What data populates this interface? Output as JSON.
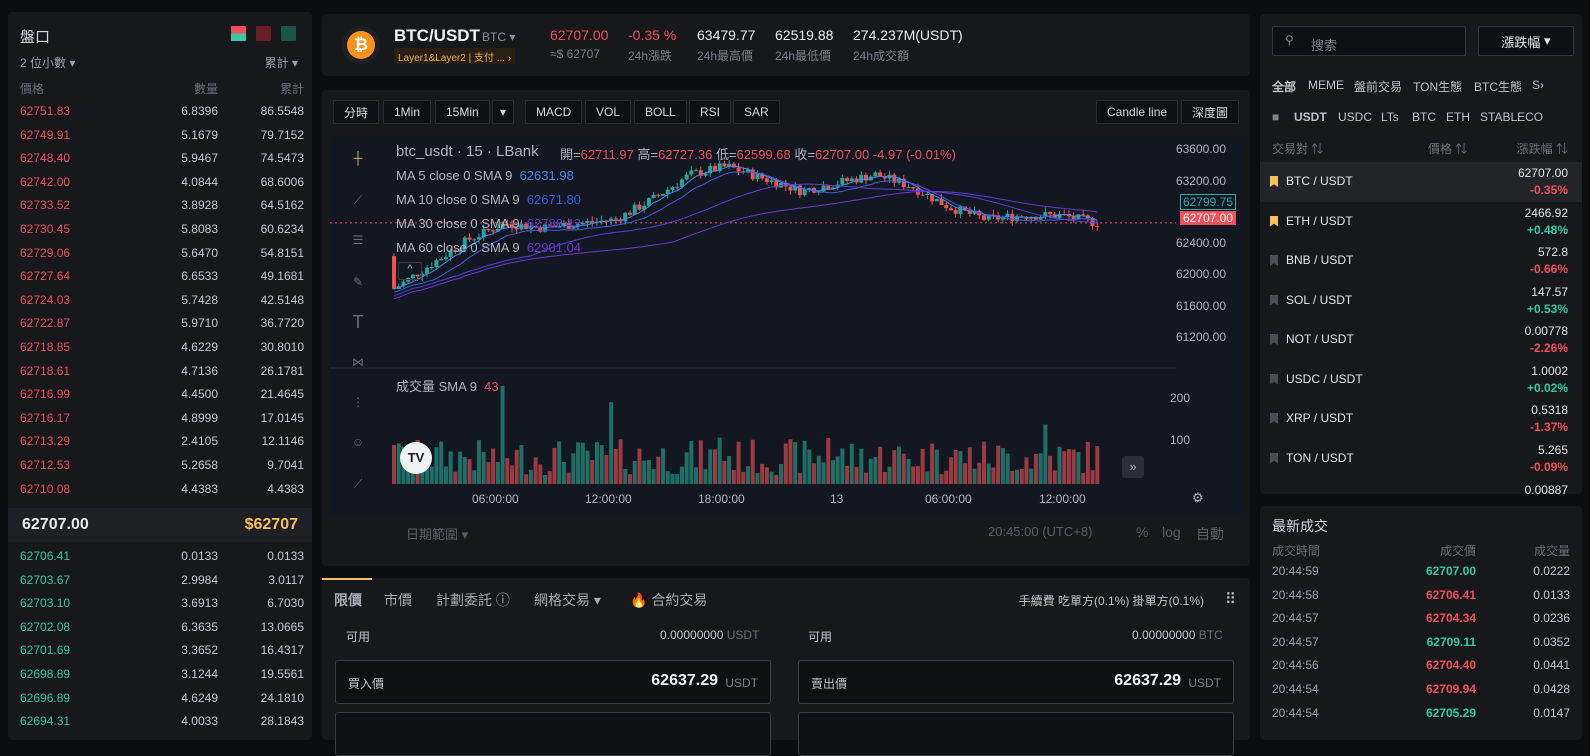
{
  "orderbook": {
    "title": "盤口",
    "decimals": "2 位小數",
    "cumulative": "累計",
    "headers": {
      "price": "價格",
      "amount": "數量",
      "total": "累計"
    },
    "asks": [
      [
        "62751.83",
        "6.8396",
        "86.5548"
      ],
      [
        "62749.91",
        "5.1679",
        "79.7152"
      ],
      [
        "62748.40",
        "5.9467",
        "74.5473"
      ],
      [
        "62742.00",
        "4.0844",
        "68.6006"
      ],
      [
        "62733.52",
        "3.8928",
        "64.5162"
      ],
      [
        "62730.45",
        "5.8083",
        "60.6234"
      ],
      [
        "62729.06",
        "5.6470",
        "54.8151"
      ],
      [
        "62727.64",
        "6.6533",
        "49.1681"
      ],
      [
        "62724.03",
        "5.7428",
        "42.5148"
      ],
      [
        "62722.87",
        "5.9710",
        "36.7720"
      ],
      [
        "62718.85",
        "4.6229",
        "30.8010"
      ],
      [
        "62718.61",
        "4.7136",
        "26.1781"
      ],
      [
        "62716.99",
        "4.4500",
        "21.4645"
      ],
      [
        "62716.17",
        "4.8999",
        "17.0145"
      ],
      [
        "62713.29",
        "2.4105",
        "12.1146"
      ],
      [
        "62712.53",
        "5.2658",
        "9.7041"
      ],
      [
        "62710.08",
        "4.4383",
        "4.4383"
      ]
    ],
    "last_price": "62707.00",
    "last_usd": "$62707",
    "bids": [
      [
        "62706.41",
        "0.0133",
        "0.0133"
      ],
      [
        "62703.67",
        "2.9984",
        "3.0117"
      ],
      [
        "62703.10",
        "3.6913",
        "6.7030"
      ],
      [
        "62702.08",
        "6.3635",
        "13.0665"
      ],
      [
        "62701.69",
        "3.3652",
        "16.4317"
      ],
      [
        "62698.89",
        "3.1244",
        "19.5561"
      ],
      [
        "62696.89",
        "4.6249",
        "24.1810"
      ],
      [
        "62694.31",
        "4.0033",
        "28.1843"
      ]
    ]
  },
  "header": {
    "pair": "BTC/USDT",
    "base": "BTC",
    "tags": "Layer1&Layer2 | 支付 ... ›",
    "price": "62707.00",
    "price_usd": "≈$ 62707",
    "change": "-0.35 %",
    "change_label": "24h漲跌",
    "high": "63479.77",
    "high_label": "24h最高價",
    "low": "62519.88",
    "low_label": "24h最低價",
    "volume": "274.237M(USDT)",
    "volume_label": "24h成交額"
  },
  "chart_toolbar": {
    "timeframes": [
      "分時",
      "1Min",
      "15Min"
    ],
    "indicators": [
      "MACD",
      "VOL",
      "BOLL",
      "RSI",
      "SAR"
    ],
    "candle_line": "Candle line",
    "depth": "深度圖"
  },
  "chart_info": {
    "symbol": "btc_usdt · 15 · LBank",
    "ohlc_open_label": "開=",
    "ohlc_open": "62711.97",
    "ohlc_high_label": "高=",
    "ohlc_high": "62727.36",
    "ohlc_low_label": "低=",
    "ohlc_low": "62599.68",
    "ohlc_close_label": "收=",
    "ohlc_close": "62707.00",
    "ohlc_change": "-4.97 (-0.01%)",
    "ma": [
      {
        "label": "MA 5 close 0 SMA 9",
        "value": "62631.98",
        "color": "#4f86e8"
      },
      {
        "label": "MA 10 close 0 SMA 9",
        "value": "62671.80",
        "color": "#3f5fe0"
      },
      {
        "label": "MA 30 close 0 SMA 9",
        "value": "62788.43",
        "color": "#5a3fd6"
      },
      {
        "label": "MA 60 close 0 SMA 9",
        "value": "62901.04",
        "color": "#6a3ad0"
      }
    ],
    "vol_label": "成交量",
    "vol_sma": "SMA 9",
    "vol_value": "43",
    "y_ticks": [
      "63600.00",
      "63200.00",
      "62799.75",
      "62707.00",
      "62400.00",
      "62000.00",
      "61600.00",
      "61200.00"
    ],
    "vol_ticks": [
      "200",
      "100"
    ],
    "x_ticks": [
      "06:00:00",
      "12:00:00",
      "18:00:00",
      "13",
      "06:00:00",
      "12:00:00"
    ],
    "date_range": "日期範圍",
    "time": "20:45:00 (UTC+8)",
    "pct": "%",
    "log": "log",
    "auto": "自動"
  },
  "chart_data": {
    "type": "candlestick",
    "x": [
      "06:00:00",
      "12:00:00",
      "18:00:00",
      "13",
      "06:00:00",
      "12:00:00"
    ],
    "y_range": [
      61200,
      63600
    ],
    "last_close": 62707.0,
    "ma_values": [
      62631.98,
      62671.8,
      62788.43,
      62901.04
    ],
    "volume_range": [
      0,
      200
    ]
  },
  "order": {
    "tabs": [
      "限價",
      "市價",
      "計劃委託",
      "網格交易",
      "合約交易"
    ],
    "fee_label": "手續費",
    "fee": "吃單方(0.1%) 掛單方(0.1%)",
    "avail_label": "可用",
    "buy_avail": "0.00000000",
    "buy_unit": "USDT",
    "sell_avail": "0.00000000",
    "sell_unit": "BTC",
    "buy_price_label": "買入價",
    "sell_price_label": "賣出價",
    "price_value": "62637.29",
    "price_unit": "USDT"
  },
  "markets": {
    "search_placeholder": "搜索",
    "sort": "漲跌幅",
    "categories": [
      "全部",
      "MEME",
      "盤前交易",
      "TON生態",
      "BTC生態",
      "S"
    ],
    "quotes": [
      "USDT",
      "USDC",
      "LTs",
      "BTC",
      "ETH",
      "STABLECO"
    ],
    "headers": {
      "pair": "交易對",
      "price": "價格",
      "change": "漲跌幅"
    },
    "rows": [
      {
        "pair": "BTC / USDT",
        "price": "62707.00",
        "change": "-0.35%",
        "up": false,
        "star": true
      },
      {
        "pair": "ETH / USDT",
        "price": "2466.92",
        "change": "+0.48%",
        "up": true,
        "star": true
      },
      {
        "pair": "BNB / USDT",
        "price": "572.8",
        "change": "-0.66%",
        "up": false,
        "star": false
      },
      {
        "pair": "SOL / USDT",
        "price": "147.57",
        "change": "+0.53%",
        "up": true,
        "star": false
      },
      {
        "pair": "NOT / USDT",
        "price": "0.00778",
        "change": "-2.26%",
        "up": false,
        "star": false
      },
      {
        "pair": "USDC / USDT",
        "price": "1.0002",
        "change": "+0.02%",
        "up": true,
        "star": false
      },
      {
        "pair": "XRP / USDT",
        "price": "0.5318",
        "change": "-1.37%",
        "up": false,
        "star": false
      },
      {
        "pair": "TON / USDT",
        "price": "5.265",
        "change": "-0.09%",
        "up": false,
        "star": false
      }
    ],
    "partial": "0.00887"
  },
  "trades": {
    "title": "最新成交",
    "headers": {
      "time": "成交時間",
      "price": "成交價",
      "amount": "成交量"
    },
    "rows": [
      [
        "20:44:59",
        "62707.00",
        "0.0222",
        true
      ],
      [
        "20:44:58",
        "62706.41",
        "0.0133",
        false
      ],
      [
        "20:44:57",
        "62704.34",
        "0.0236",
        false
      ],
      [
        "20:44:57",
        "62709.11",
        "0.0352",
        true
      ],
      [
        "20:44:56",
        "62704.40",
        "0.0441",
        false
      ],
      [
        "20:44:54",
        "62709.94",
        "0.0428",
        false
      ],
      [
        "20:44:54",
        "62705.29",
        "0.0147",
        true
      ]
    ]
  }
}
